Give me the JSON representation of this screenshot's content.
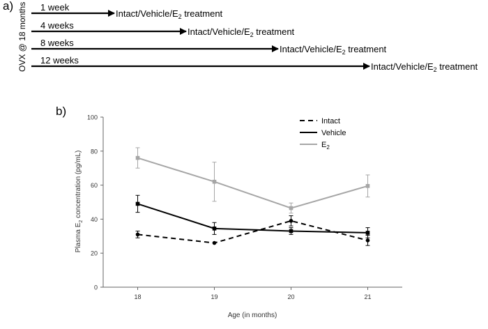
{
  "panel_a": {
    "label": "a)",
    "y_caption": "OVX @ 18 months",
    "rows": [
      {
        "duration": "1 week",
        "treatment": "Intact/Vehicle/E",
        "sub": "2",
        "suffix": " treatment"
      },
      {
        "duration": "4 weeks",
        "treatment": "Intact/Vehicle/E",
        "sub": "2",
        "suffix": " treatment"
      },
      {
        "duration": "8 weeks",
        "treatment": "Intact/Vehicle/E",
        "sub": "2",
        "suffix": " treatment"
      },
      {
        "duration": "12 weeks",
        "treatment": "Intact/Vehicle/E",
        "sub": "2",
        "suffix": " treatment"
      }
    ]
  },
  "panel_b": {
    "label": "b)"
  },
  "chart_data": {
    "type": "line",
    "title": "",
    "xlabel": "Age (in months)",
    "ylabel_prefix": "Plasma E",
    "ylabel_sub": "2",
    "ylabel_suffix": " concentration (pg/mL)",
    "x": [
      18,
      19,
      20,
      21
    ],
    "xlim": [
      17.55,
      21.45
    ],
    "ylim": [
      0,
      100
    ],
    "yticks": [
      0,
      20,
      40,
      60,
      80,
      100
    ],
    "legend_position": "top-right",
    "series": [
      {
        "name": "Intact",
        "name_sub": "",
        "style": "dashed",
        "marker": "circle",
        "color": "#000000",
        "values": [
          31,
          26,
          39,
          27.5
        ],
        "errors": [
          2,
          0,
          3,
          3
        ]
      },
      {
        "name": "Vehicle",
        "name_sub": "",
        "style": "solid",
        "marker": "square",
        "color": "#000000",
        "values": [
          49,
          34.5,
          33,
          32
        ],
        "errors": [
          5,
          3.5,
          2,
          3
        ]
      },
      {
        "name": "E",
        "name_sub": "2",
        "style": "solid",
        "marker": "square",
        "color": "#a6a6a6",
        "values": [
          76,
          62,
          46.5,
          59.5
        ],
        "errors": [
          6,
          11.5,
          3,
          6.5
        ]
      }
    ]
  }
}
